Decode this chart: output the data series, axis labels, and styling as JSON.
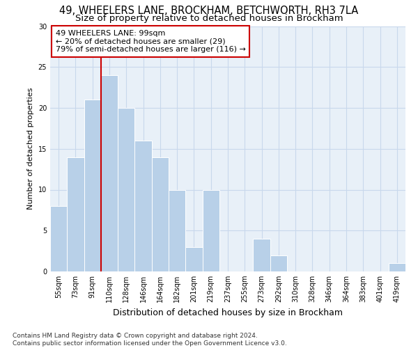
{
  "title1": "49, WHEELERS LANE, BROCKHAM, BETCHWORTH, RH3 7LA",
  "title2": "Size of property relative to detached houses in Brockham",
  "xlabel": "Distribution of detached houses by size in Brockham",
  "ylabel": "Number of detached properties",
  "footnote": "Contains HM Land Registry data © Crown copyright and database right 2024.\nContains public sector information licensed under the Open Government Licence v3.0.",
  "categories": [
    "55sqm",
    "73sqm",
    "91sqm",
    "110sqm",
    "128sqm",
    "146sqm",
    "164sqm",
    "182sqm",
    "201sqm",
    "219sqm",
    "237sqm",
    "255sqm",
    "273sqm",
    "292sqm",
    "310sqm",
    "328sqm",
    "346sqm",
    "364sqm",
    "383sqm",
    "401sqm",
    "419sqm"
  ],
  "values": [
    8,
    14,
    21,
    24,
    20,
    16,
    14,
    10,
    3,
    10,
    0,
    0,
    4,
    2,
    0,
    0,
    0,
    0,
    0,
    0,
    1
  ],
  "bar_color": "#b8d0e8",
  "bar_edge_color": "#ffffff",
  "grid_color": "#c8d8ec",
  "background_color": "#e8f0f8",
  "vline_x_idx": 2,
  "vline_color": "#cc0000",
  "annotation_text": "49 WHEELERS LANE: 99sqm\n← 20% of detached houses are smaller (29)\n79% of semi-detached houses are larger (116) →",
  "annotation_box_color": "#ffffff",
  "annotation_box_edge": "#cc0000",
  "ylim": [
    0,
    30
  ],
  "yticks": [
    0,
    5,
    10,
    15,
    20,
    25,
    30
  ],
  "title1_fontsize": 10.5,
  "title2_fontsize": 9.5,
  "xlabel_fontsize": 9,
  "ylabel_fontsize": 8,
  "tick_fontsize": 7,
  "annot_fontsize": 8,
  "footnote_fontsize": 6.5
}
